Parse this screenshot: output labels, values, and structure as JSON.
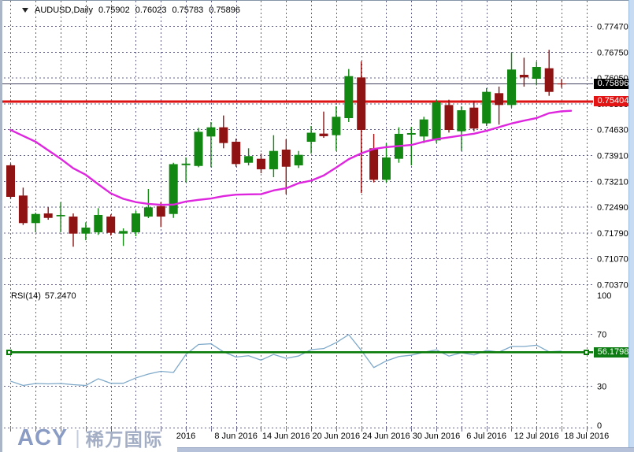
{
  "title": {
    "symbol": "AUDUSD,Daily",
    "open": "0.75902",
    "high": "0.76023",
    "low": "0.75783",
    "close": "0.75896"
  },
  "indicator": {
    "name": "RSI(14)",
    "value": "57.2470"
  },
  "levels": {
    "current_price_label": "0.75896",
    "red_line_label": "0.75404",
    "rsi_line_label": "56.1798"
  },
  "logo": {
    "brand": "ACY",
    "separator": "|",
    "cjk": "稀万国际"
  },
  "price_axis_labels": [
    "0.77470",
    "0.76750",
    "0.76050",
    "0.75350",
    "0.74630",
    "0.73910",
    "0.73210",
    "0.72490",
    "0.71790",
    "0.71070",
    "0.70370"
  ],
  "rsi_axis_labels": [
    "100",
    "70",
    "30",
    "0"
  ],
  "date_axis_labels": [
    "2016",
    "8 Jun 2016",
    "14 Jun 2016",
    "20 Jun 2016",
    "24 Jun 2016",
    "30 Jun 2016",
    "6 Jul 2016",
    "12 Jul 2016",
    "18 Jul 2016"
  ],
  "chart_data": {
    "type": "candlestick",
    "title": "AUDUSD,Daily",
    "ylabel": "price",
    "price_ticks": [
      0.7747,
      0.7675,
      0.7605,
      0.7535,
      0.7463,
      0.7391,
      0.7321,
      0.7249,
      0.7179,
      0.7107,
      0.7037
    ],
    "x_labels": [
      "2016",
      "8 Jun 2016",
      "14 Jun 2016",
      "20 Jun 2016",
      "24 Jun 2016",
      "30 Jun 2016",
      "6 Jul 2016",
      "12 Jul 2016",
      "18 Jul 2016"
    ],
    "candles_ohlc": [
      [
        0.73651,
        0.737,
        0.72734,
        0.72784
      ],
      [
        0.7282,
        0.73037,
        0.72011,
        0.72063
      ],
      [
        0.72063,
        0.72351,
        0.7181,
        0.72313
      ],
      [
        0.72328,
        0.72495,
        0.72155,
        0.72205
      ],
      [
        0.72249,
        0.72638,
        0.7181,
        0.72286
      ],
      [
        0.72242,
        0.72328,
        0.71413,
        0.71773
      ],
      [
        0.71773,
        0.72083,
        0.71592,
        0.71939
      ],
      [
        0.7181,
        0.72473,
        0.71738,
        0.72286
      ],
      [
        0.72242,
        0.723,
        0.71722,
        0.71795
      ],
      [
        0.71773,
        0.71918,
        0.71435,
        0.71845
      ],
      [
        0.7181,
        0.72394,
        0.71701,
        0.72328
      ],
      [
        0.72242,
        0.73,
        0.722,
        0.72495
      ],
      [
        0.7253,
        0.72638,
        0.71954,
        0.72242
      ],
      [
        0.72313,
        0.7372,
        0.72205,
        0.73683
      ],
      [
        0.73655,
        0.73866,
        0.7318,
        0.73698
      ],
      [
        0.73633,
        0.7468,
        0.73598,
        0.74572
      ],
      [
        0.74443,
        0.7484,
        0.73598,
        0.74696
      ],
      [
        0.74696,
        0.75021,
        0.74119,
        0.74263
      ],
      [
        0.74299,
        0.74385,
        0.73612,
        0.73686
      ],
      [
        0.73721,
        0.74119,
        0.73649,
        0.73903
      ],
      [
        0.7383,
        0.73975,
        0.73433,
        0.73542
      ],
      [
        0.73542,
        0.74479,
        0.73325,
        0.74046
      ],
      [
        0.74083,
        0.74371,
        0.72856,
        0.73612
      ],
      [
        0.73649,
        0.74046,
        0.73577,
        0.73938
      ],
      [
        0.74298,
        0.74732,
        0.73975,
        0.74547
      ],
      [
        0.74523,
        0.75128,
        0.74407,
        0.74451
      ],
      [
        0.74479,
        0.75274,
        0.74046,
        0.74985
      ],
      [
        0.74948,
        0.76297,
        0.7484,
        0.76102
      ],
      [
        0.76067,
        0.7651,
        0.7289,
        0.74624
      ],
      [
        0.74119,
        0.74515,
        0.7318,
        0.73253
      ],
      [
        0.73253,
        0.74263,
        0.7318,
        0.73866
      ],
      [
        0.7383,
        0.74696,
        0.73721,
        0.74516
      ],
      [
        0.74494,
        0.7471,
        0.73649,
        0.74537
      ],
      [
        0.74443,
        0.74985,
        0.74263,
        0.74912
      ],
      [
        0.74335,
        0.75453,
        0.74263,
        0.75381
      ],
      [
        0.75309,
        0.75453,
        0.74551,
        0.74623
      ],
      [
        0.74587,
        0.75274,
        0.74046,
        0.75165
      ],
      [
        0.75237,
        0.75418,
        0.74587,
        0.74661
      ],
      [
        0.74804,
        0.75772,
        0.74732,
        0.7567
      ],
      [
        0.75634,
        0.75815,
        0.74768,
        0.75309
      ],
      [
        0.75309,
        0.76752,
        0.75237,
        0.76284
      ],
      [
        0.76139,
        0.76609,
        0.75814,
        0.76067
      ],
      [
        0.7603,
        0.765,
        0.7585,
        0.76355
      ],
      [
        0.76319,
        0.76825,
        0.75561,
        0.75669
      ],
      [
        0.75902,
        0.76023,
        0.75783,
        0.75896
      ]
    ],
    "ma_values": [
      0.74623,
      0.7446,
      0.74299,
      0.74064,
      0.7383,
      0.7357,
      0.7339,
      0.7313,
      0.7288,
      0.7273,
      0.7264,
      0.7259,
      0.72565,
      0.7257,
      0.72655,
      0.727,
      0.7274,
      0.72805,
      0.72845,
      0.72852,
      0.72858,
      0.7296,
      0.7302,
      0.7316,
      0.7323,
      0.7337,
      0.7359,
      0.7382,
      0.7398,
      0.741,
      0.7415,
      0.7418,
      0.7421,
      0.743,
      0.7437,
      0.7442,
      0.7447,
      0.7452,
      0.746,
      0.747,
      0.748,
      0.7488,
      0.7495,
      0.75085,
      0.75135
    ],
    "rsi_values": [
      33.9,
      30.6,
      32.1,
      31.8,
      32.1,
      31.2,
      30.6,
      35.8,
      32.3,
      32.3,
      36.4,
      39.4,
      41.5,
      40.6,
      54.5,
      62.1,
      62.7,
      56.5,
      52.5,
      53.5,
      50.1,
      54.5,
      51.5,
      53.3,
      58.2,
      59.0,
      63.6,
      69.7,
      57.6,
      44.4,
      49.5,
      52.9,
      53.9,
      56.2,
      58.0,
      53.2,
      55.8,
      54.1,
      57.6,
      56.3,
      60.6,
      60.6,
      61.6,
      56.5,
      57.0
    ],
    "rsi_levels": [
      100,
      70,
      30,
      0
    ],
    "rsi_hline": 56.1798,
    "hline_red": 0.75404,
    "hline_current": 0.75896,
    "colors": {
      "up": "#128812",
      "down": "#8f1313",
      "ma": "#de26de",
      "rsi": "#7ea9c9",
      "red_line": "#dd1212",
      "current_line": "#42425f",
      "grid": "#62628c",
      "rsi_hline": "#077a07"
    }
  }
}
